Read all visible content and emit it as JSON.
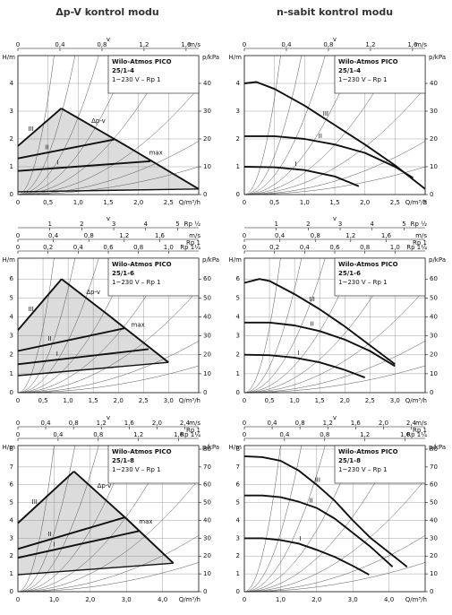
{
  "headers": [
    "Δp-V kontrol modu",
    "n-sabit kontrol modu"
  ],
  "chart_data": [
    {
      "type": "line",
      "box": [
        "Wilo-Atmos PICO",
        "25/1-4",
        "1~230 V – Rp 1"
      ],
      "xlabel": "Q/m³/h",
      "ylabel": "H/m",
      "y2label": "p/kPa",
      "top_label": "v",
      "top_axes": [
        {
          "unit": "m/s",
          "lim": [
            0,
            1.72
          ],
          "ticks": [
            0,
            {
              "value": 0.4,
              "label": "0,4"
            },
            {
              "value": 0.8,
              "label": "0,8"
            },
            {
              "value": 1.2,
              "label": "1,2"
            },
            {
              "value": 1.6,
              "label": "1,6"
            }
          ]
        }
      ],
      "xlim": [
        0,
        3.0
      ],
      "xticks": [
        0,
        {
          "value": 0.5,
          "label": "0,5"
        },
        {
          "value": 1,
          "label": "1,0"
        },
        {
          "value": 1.5,
          "label": "1,5"
        },
        {
          "value": 2,
          "label": "2,0"
        },
        {
          "value": 2.5,
          "label": "2,5"
        }
      ],
      "ylim": [
        0,
        5
      ],
      "yticks": [
        0,
        1,
        2,
        3,
        4
      ],
      "y2lim": [
        0,
        50
      ],
      "y2ticks": [
        0,
        10,
        20,
        30,
        40
      ],
      "color": "#111111",
      "fill": "#dcdcdc",
      "annotations": [
        "Δp-v"
      ],
      "series": [
        {
          "name": "III",
          "x": [
            0,
            0.72
          ],
          "values": [
            1.75,
            3.1
          ]
        },
        {
          "name": "II",
          "x": [
            0,
            1.6
          ],
          "values": [
            1.3,
            1.98
          ]
        },
        {
          "name": "I",
          "x": [
            0,
            2.2
          ],
          "values": [
            0.85,
            1.2
          ]
        },
        {
          "name": "max",
          "x": [
            0.72,
            1.8,
            3.0
          ],
          "values": [
            3.1,
            1.75,
            0.2
          ]
        },
        {
          "x": [
            0,
            3.0
          ],
          "values": [
            0.1,
            0.2
          ]
        }
      ]
    },
    {
      "type": "line",
      "box": [
        "Wilo-Atmos PICO",
        "25/1-4",
        "1~230 V – Rp 1"
      ],
      "xlabel": "Q/m³/h",
      "ylabel": "H/m",
      "y2label": "p/kPa",
      "top_label": "v",
      "top_axes": [
        {
          "unit": "m/s",
          "lim": [
            0,
            1.72
          ],
          "ticks": [
            0,
            {
              "value": 0.4,
              "label": "0,4"
            },
            {
              "value": 0.8,
              "label": "0,8"
            },
            {
              "value": 1.2,
              "label": "1,2"
            },
            {
              "value": 1.6,
              "label": "1,6"
            }
          ]
        }
      ],
      "xlim": [
        0,
        3.0
      ],
      "xticks": [
        0,
        {
          "value": 0.5,
          "label": "0,5"
        },
        {
          "value": 1,
          "label": "1,0"
        },
        {
          "value": 1.5,
          "label": "1,5"
        },
        {
          "value": 2,
          "label": "2,0"
        },
        {
          "value": 2.5,
          "label": "2,5"
        },
        3
      ],
      "ylim": [
        0,
        5
      ],
      "yticks": [
        0,
        1,
        2,
        3,
        4
      ],
      "y2lim": [
        0,
        50
      ],
      "y2ticks": [
        0,
        10,
        20,
        30,
        40
      ],
      "color": "#111111",
      "series": [
        {
          "name": "III",
          "x": [
            0,
            0.2,
            0.5,
            1,
            1.5,
            2,
            2.5,
            3
          ],
          "values": [
            4.0,
            4.05,
            3.8,
            3.2,
            2.5,
            1.8,
            1.05,
            0.2
          ]
        },
        {
          "name": "II",
          "x": [
            0,
            0.5,
            1,
            1.5,
            2,
            2.5,
            2.8
          ],
          "values": [
            2.1,
            2.1,
            2.0,
            1.8,
            1.5,
            1.0,
            0.6
          ]
        },
        {
          "name": "I",
          "x": [
            0,
            0.5,
            1,
            1.5,
            1.9
          ],
          "values": [
            1.0,
            0.98,
            0.88,
            0.65,
            0.3
          ]
        }
      ]
    },
    {
      "type": "line",
      "box": [
        "Wilo-Atmos PICO",
        "25/1-6",
        "1~230 V – Rp 1"
      ],
      "xlabel": "Q/m³/h",
      "ylabel": "H/m",
      "y2label": "p/kPa",
      "top_label": "v",
      "top_axes": [
        {
          "pipe": "Rp ½",
          "lim": [
            0,
            5.66
          ],
          "ticks": [
            1,
            2,
            3,
            4,
            5
          ]
        },
        {
          "unit": "m/s",
          "pipe": "Rp 1",
          "lim": [
            0,
            2.04
          ],
          "ticks": [
            0,
            {
              "value": 0.4,
              "label": "0,4"
            },
            {
              "value": 0.8,
              "label": "0,8"
            },
            {
              "value": 1.2,
              "label": "1,2"
            },
            {
              "value": 1.6,
              "label": "1,6"
            }
          ]
        },
        {
          "pipe": "Rp 1¼",
          "lim": [
            0,
            1.2
          ],
          "ticks": [
            0,
            {
              "value": 0.2,
              "label": "0,2"
            },
            {
              "value": 0.4,
              "label": "0,4"
            },
            {
              "value": 0.6,
              "label": "0,6"
            },
            {
              "value": 0.8,
              "label": "0,8"
            },
            {
              "value": 1,
              "label": "1,0"
            }
          ]
        }
      ],
      "xlim": [
        0,
        3.6
      ],
      "xticks": [
        0,
        {
          "value": 0.5,
          "label": "0,5"
        },
        {
          "value": 1,
          "label": "1,0"
        },
        {
          "value": 1.5,
          "label": "1,5"
        },
        {
          "value": 2,
          "label": "2,0"
        },
        {
          "value": 2.5,
          "label": "2,5"
        },
        {
          "value": 3,
          "label": "3,0"
        }
      ],
      "ylim": [
        0,
        7.1
      ],
      "yticks": [
        0,
        1,
        2,
        3,
        4,
        5,
        6
      ],
      "y2lim": [
        0,
        71
      ],
      "y2ticks": [
        0,
        10,
        20,
        30,
        40,
        50,
        60
      ],
      "color": "#111111",
      "fill": "#dcdcdc",
      "annotations": [
        "Δp-v"
      ],
      "series": [
        {
          "name": "III",
          "x": [
            0,
            0.87
          ],
          "values": [
            3.3,
            6.0
          ]
        },
        {
          "name": "II",
          "x": [
            0,
            2.12
          ],
          "values": [
            2.2,
            3.4
          ]
        },
        {
          "name": "I",
          "x": [
            0,
            2.6
          ],
          "values": [
            1.5,
            2.3
          ]
        },
        {
          "name": "max",
          "x": [
            0.87,
            1.8,
            3.0
          ],
          "values": [
            6.0,
            4.1,
            1.6
          ]
        },
        {
          "x": [
            0,
            3.0
          ],
          "values": [
            0.9,
            1.6
          ]
        }
      ]
    },
    {
      "type": "line",
      "box": [
        "Wilo-Atmos PICO",
        "25/1-6",
        "1~230 V – Rp 1"
      ],
      "xlabel": "Q/m³/h",
      "ylabel": "H/m",
      "y2label": "p/kPa",
      "top_label": "v",
      "top_axes": [
        {
          "pipe": "Rp ½",
          "lim": [
            0,
            5.66
          ],
          "ticks": [
            1,
            2,
            3,
            4,
            5
          ]
        },
        {
          "unit": "m/s",
          "pipe": "Rp 1",
          "lim": [
            0,
            2.04
          ],
          "ticks": [
            0,
            {
              "value": 0.4,
              "label": "0,4"
            },
            {
              "value": 0.8,
              "label": "0,8"
            },
            {
              "value": 1.2,
              "label": "1,2"
            },
            {
              "value": 1.6,
              "label": "1,6"
            }
          ]
        },
        {
          "pipe": "Rp 1¼",
          "lim": [
            0,
            1.2
          ],
          "ticks": [
            0,
            {
              "value": 0.2,
              "label": "0,2"
            },
            {
              "value": 0.4,
              "label": "0,4"
            },
            {
              "value": 0.6,
              "label": "0,6"
            },
            {
              "value": 0.8,
              "label": "0,8"
            },
            {
              "value": 1,
              "label": "1,0"
            }
          ]
        }
      ],
      "xlim": [
        0,
        3.6
      ],
      "xticks": [
        0,
        {
          "value": 0.5,
          "label": "0,5"
        },
        {
          "value": 1,
          "label": "1,0"
        },
        {
          "value": 1.5,
          "label": "1,5"
        },
        {
          "value": 2,
          "label": "2,0"
        },
        {
          "value": 2.5,
          "label": "2,5"
        },
        {
          "value": 3,
          "label": "3,0"
        }
      ],
      "ylim": [
        0,
        7.1
      ],
      "yticks": [
        0,
        1,
        2,
        3,
        4,
        5,
        6
      ],
      "y2lim": [
        0,
        71
      ],
      "y2ticks": [
        0,
        10,
        20,
        30,
        40,
        50,
        60
      ],
      "color": "#111111",
      "series": [
        {
          "name": "III",
          "x": [
            0,
            0.3,
            0.5,
            1,
            1.5,
            2,
            2.5,
            3
          ],
          "values": [
            5.8,
            6.0,
            5.9,
            5.2,
            4.4,
            3.5,
            2.5,
            1.5
          ]
        },
        {
          "name": "II",
          "x": [
            0,
            0.5,
            1,
            1.5,
            2,
            2.5,
            3
          ],
          "values": [
            3.7,
            3.7,
            3.55,
            3.25,
            2.8,
            2.2,
            1.4
          ]
        },
        {
          "name": "I",
          "x": [
            0,
            0.5,
            1,
            1.5,
            2,
            2.4
          ],
          "values": [
            2.0,
            1.98,
            1.85,
            1.6,
            1.2,
            0.8
          ]
        }
      ]
    },
    {
      "type": "line",
      "box": [
        "Wilo-Atmos PICO",
        "25/1-8",
        "1~230 V – Rp 1"
      ],
      "xlabel": "Q/m³/h",
      "ylabel": "H/m",
      "y2label": "p/kPa",
      "top_label": "v",
      "top_axes": [
        {
          "unit": "m/s",
          "pipe": "Rp 1",
          "lim": [
            0,
            2.6
          ],
          "ticks": [
            0,
            {
              "value": 0.4,
              "label": "0,4"
            },
            {
              "value": 0.8,
              "label": "0,8"
            },
            {
              "value": 1.2,
              "label": "1,2"
            },
            {
              "value": 1.6,
              "label": "1,6"
            },
            {
              "value": 2,
              "label": "2,0"
            },
            {
              "value": 2.4,
              "label": "2,4"
            }
          ]
        },
        {
          "pipe": "Rp 1¼",
          "lim": [
            0,
            1.8
          ],
          "ticks": [
            0,
            {
              "value": 0.4,
              "label": "0,4"
            },
            {
              "value": 0.8,
              "label": "0,8"
            },
            {
              "value": 1.2,
              "label": "1,2"
            },
            {
              "value": 1.6,
              "label": "1,6"
            }
          ]
        }
      ],
      "xlim": [
        0,
        5
      ],
      "xticks": [
        0,
        {
          "value": 1,
          "label": "1,0"
        },
        {
          "value": 2,
          "label": "2,0"
        },
        {
          "value": 3,
          "label": "3,0"
        },
        {
          "value": 4,
          "label": "4,0"
        }
      ],
      "ylim": [
        0,
        8.2
      ],
      "yticks": [
        0,
        1,
        2,
        3,
        4,
        5,
        6,
        7,
        8
      ],
      "y2lim": [
        0,
        82
      ],
      "y2ticks": [
        0,
        10,
        20,
        30,
        40,
        50,
        60,
        70,
        80
      ],
      "color": "#111111",
      "fill": "#dcdcdc",
      "annotations": [
        "Δp-v"
      ],
      "series": [
        {
          "name": "III",
          "x": [
            0,
            1.55
          ],
          "values": [
            3.85,
            6.75
          ]
        },
        {
          "name": "II",
          "x": [
            0,
            2.94
          ],
          "values": [
            2.4,
            4.16
          ]
        },
        {
          "name": "I",
          "x": [
            0,
            3.34
          ],
          "values": [
            1.9,
            3.4
          ]
        },
        {
          "name": "max",
          "x": [
            1.55,
            3.0,
            4.3
          ],
          "values": [
            6.75,
            4.1,
            1.6
          ]
        },
        {
          "x": [
            0,
            4.3
          ],
          "values": [
            0.95,
            1.6
          ]
        }
      ]
    },
    {
      "type": "line",
      "box": [
        "Wilo-Atmos PICO",
        "25/1-8",
        "1~230 V – Rp 1"
      ],
      "xlabel": "Q/m³/h",
      "ylabel": "H/m",
      "y2label": "p/kPa",
      "top_label": "v",
      "top_axes": [
        {
          "unit": "m/s",
          "pipe": "Rp 1",
          "lim": [
            0,
            2.6
          ],
          "ticks": [
            0,
            {
              "value": 0.4,
              "label": "0,4"
            },
            {
              "value": 0.8,
              "label": "0,8"
            },
            {
              "value": 1.2,
              "label": "1,2"
            },
            {
              "value": 1.6,
              "label": "1,6"
            },
            {
              "value": 2,
              "label": "2,0"
            },
            {
              "value": 2.4,
              "label": "2,4"
            }
          ]
        },
        {
          "pipe": "Rp 1¼",
          "lim": [
            0,
            1.8
          ],
          "ticks": [
            0,
            {
              "value": 0.4,
              "label": "0,4"
            },
            {
              "value": 0.8,
              "label": "0,8"
            },
            {
              "value": 1.2,
              "label": "1,2"
            },
            {
              "value": 1.6,
              "label": "1,6"
            }
          ]
        }
      ],
      "xlim": [
        0,
        5
      ],
      "xticks": [
        0,
        {
          "value": 1,
          "label": "1,0"
        },
        {
          "value": 2,
          "label": "2,0"
        },
        {
          "value": 3,
          "label": "3,0"
        },
        {
          "value": 4,
          "label": "4,0"
        }
      ],
      "ylim": [
        0,
        8.2
      ],
      "yticks": [
        0,
        1,
        2,
        3,
        4,
        5,
        6,
        7,
        8
      ],
      "y2lim": [
        0,
        82
      ],
      "y2ticks": [
        0,
        10,
        20,
        30,
        40,
        50,
        60,
        70,
        80
      ],
      "color": "#111111",
      "series": [
        {
          "name": "III",
          "x": [
            0,
            0.5,
            1,
            1.5,
            2,
            2.5,
            3,
            3.5,
            4,
            4.5
          ],
          "values": [
            7.6,
            7.55,
            7.35,
            6.8,
            6.0,
            5.1,
            4.0,
            3.0,
            2.2,
            1.4
          ]
        },
        {
          "name": "II",
          "x": [
            0,
            0.5,
            1,
            1.5,
            2,
            2.5,
            3,
            3.5,
            4.1
          ],
          "values": [
            5.4,
            5.4,
            5.3,
            5.05,
            4.7,
            4.1,
            3.3,
            2.5,
            1.4
          ]
        },
        {
          "name": "I",
          "x": [
            0,
            0.5,
            1,
            1.5,
            2,
            2.5,
            3,
            3.45
          ],
          "values": [
            3.0,
            3.0,
            2.9,
            2.7,
            2.35,
            1.95,
            1.45,
            0.95
          ]
        }
      ]
    }
  ]
}
